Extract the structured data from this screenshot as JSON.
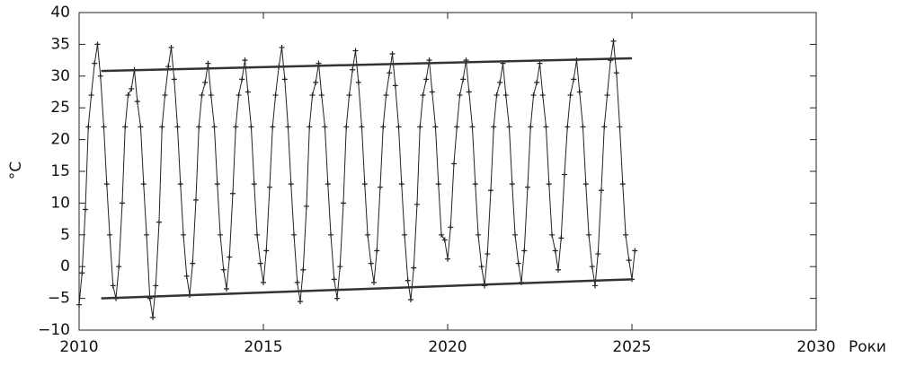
{
  "chart_data": {
    "type": "line",
    "y_label": "°C",
    "x_label": "Роки",
    "xlim": [
      2010,
      2030
    ],
    "xticks": [
      2010,
      2015,
      2020,
      2025,
      2030
    ],
    "ylim": [
      -10,
      40
    ],
    "yticks": [
      {
        "value": -10,
        "label": "−10"
      },
      {
        "value": -5,
        "label": "−5"
      },
      0,
      5,
      10,
      15,
      20,
      25,
      30,
      35,
      40
    ],
    "series": [
      {
        "color": "#222222",
        "marker": "+",
        "x": [
          2010.0,
          2010.08,
          2010.17,
          2010.25,
          2010.33,
          2010.42,
          2010.5,
          2010.58,
          2010.67,
          2010.75,
          2010.83,
          2010.92,
          2011.0,
          2011.08,
          2011.17,
          2011.25,
          2011.33,
          2011.42,
          2011.5,
          2011.58,
          2011.67,
          2011.75,
          2011.83,
          2011.92,
          2012.0,
          2012.08,
          2012.17,
          2012.25,
          2012.33,
          2012.42,
          2012.5,
          2012.58,
          2012.67,
          2012.75,
          2012.83,
          2012.92,
          2013.0,
          2013.08,
          2013.17,
          2013.25,
          2013.33,
          2013.42,
          2013.5,
          2013.58,
          2013.67,
          2013.75,
          2013.83,
          2013.92,
          2014.0,
          2014.08,
          2014.17,
          2014.25,
          2014.33,
          2014.42,
          2014.5,
          2014.58,
          2014.67,
          2014.75,
          2014.83,
          2014.92,
          2015.0,
          2015.08,
          2015.17,
          2015.25,
          2015.33,
          2015.42,
          2015.5,
          2015.58,
          2015.67,
          2015.75,
          2015.83,
          2015.92,
          2016.0,
          2016.08,
          2016.17,
          2016.25,
          2016.33,
          2016.42,
          2016.5,
          2016.58,
          2016.67,
          2016.75,
          2016.83,
          2016.92,
          2017.0,
          2017.08,
          2017.17,
          2017.25,
          2017.33,
          2017.42,
          2017.5,
          2017.58,
          2017.67,
          2017.75,
          2017.83,
          2017.92,
          2018.0,
          2018.08,
          2018.17,
          2018.25,
          2018.33,
          2018.42,
          2018.5,
          2018.58,
          2018.67,
          2018.75,
          2018.83,
          2018.92,
          2019.0,
          2019.08,
          2019.17,
          2019.25,
          2019.33,
          2019.42,
          2019.5,
          2019.58,
          2019.67,
          2019.75,
          2019.83,
          2019.92,
          2020.0,
          2020.08,
          2020.17,
          2020.25,
          2020.33,
          2020.42,
          2020.5,
          2020.58,
          2020.67,
          2020.75,
          2020.83,
          2020.92,
          2021.0,
          2021.08,
          2021.17,
          2021.25,
          2021.33,
          2021.42,
          2021.5,
          2021.58,
          2021.67,
          2021.75,
          2021.83,
          2021.92,
          2022.0,
          2022.08,
          2022.17,
          2022.25,
          2022.33,
          2022.42,
          2022.5,
          2022.58,
          2022.67,
          2022.75,
          2022.83,
          2022.92,
          2023.0,
          2023.08,
          2023.17,
          2023.25,
          2023.33,
          2023.42,
          2023.5,
          2023.58,
          2023.67,
          2023.75,
          2023.83,
          2023.92,
          2024.0,
          2024.08,
          2024.17,
          2024.25,
          2024.33,
          2024.42,
          2024.5,
          2024.58,
          2024.67,
          2024.75,
          2024.83,
          2024.92,
          2025.0,
          2025.08
        ],
        "values": [
          -6,
          -1,
          9,
          22,
          27,
          32,
          35,
          30,
          22,
          13,
          5,
          -3,
          -5,
          0,
          10,
          22,
          27,
          28,
          31,
          26,
          22,
          13,
          5,
          -5,
          -8,
          -3,
          7,
          22,
          27,
          31.5,
          34.5,
          29.5,
          22,
          13,
          5,
          -1.5,
          -4.5,
          0.5,
          10.5,
          22,
          27,
          29,
          32,
          27,
          22,
          13,
          5,
          -0.5,
          -3.5,
          1.5,
          11.5,
          22,
          27,
          29.5,
          32.5,
          27.5,
          22,
          13,
          5,
          0.5,
          -2.5,
          2.5,
          12.5,
          22,
          27,
          31.5,
          34.5,
          29.5,
          22,
          13,
          5,
          -2.5,
          -5.5,
          -0.5,
          9.5,
          22,
          27,
          29,
          32,
          27,
          22,
          13,
          5,
          -2,
          -5,
          0,
          10,
          22,
          27,
          31,
          34,
          29,
          22,
          13,
          5,
          0.5,
          -2.5,
          2.5,
          12.5,
          22,
          27,
          30.5,
          33.5,
          28.5,
          22,
          13,
          5,
          -2.2,
          -5.2,
          -0.2,
          9.8,
          22,
          27,
          29.5,
          32.5,
          27.5,
          22,
          13,
          5,
          4.2,
          1.2,
          6.2,
          16.2,
          22,
          27,
          29.5,
          32.5,
          27.5,
          22,
          13,
          5,
          0,
          -3,
          2,
          12,
          22,
          27,
          29,
          32,
          27,
          22,
          13,
          5,
          0.5,
          -2.5,
          2.5,
          12.5,
          22,
          27,
          29,
          32,
          27,
          22,
          13,
          5,
          2.5,
          -0.5,
          4.5,
          14.5,
          22,
          27,
          29.5,
          32.5,
          27.5,
          22,
          13,
          5,
          0,
          -3,
          2,
          12,
          22,
          27,
          32.5,
          35.5,
          30.5,
          22,
          13,
          5,
          1,
          -2,
          2.5
        ]
      },
      {
        "color": "#333333",
        "marker": "none",
        "x": [
          2010.6,
          2025.0
        ],
        "values": [
          30.8,
          32.8
        ]
      },
      {
        "color": "#333333",
        "marker": "none",
        "x": [
          2010.6,
          2025.0
        ],
        "values": [
          -5,
          -2
        ]
      }
    ]
  }
}
